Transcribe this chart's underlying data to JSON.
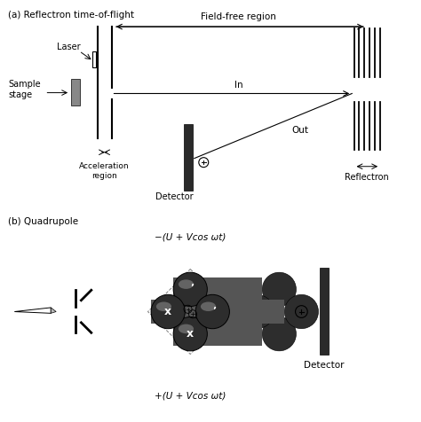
{
  "fig_width": 4.74,
  "fig_height": 4.76,
  "bg_color": "#ffffff",
  "title_a": "(a) Reflectron time-of-flight",
  "title_b": "(b) Quadrupole",
  "label_field_free": "Field-free region",
  "label_in": "In",
  "label_out": "Out",
  "label_reflectron": "Reflectron",
  "label_detector_a": "Detector",
  "label_laser": "Laser",
  "label_sample": "Sample\nstage",
  "label_accel": "Acceleration\nregion",
  "label_neg": "−(U + Vcos ωt)",
  "label_pos": "+(U + Vcos ωt)",
  "label_detector_b": "Detector",
  "dark": "#2a2a2a",
  "mid_gray": "#666666",
  "light_gray": "#aaaaaa",
  "sample_gray": "#888888"
}
